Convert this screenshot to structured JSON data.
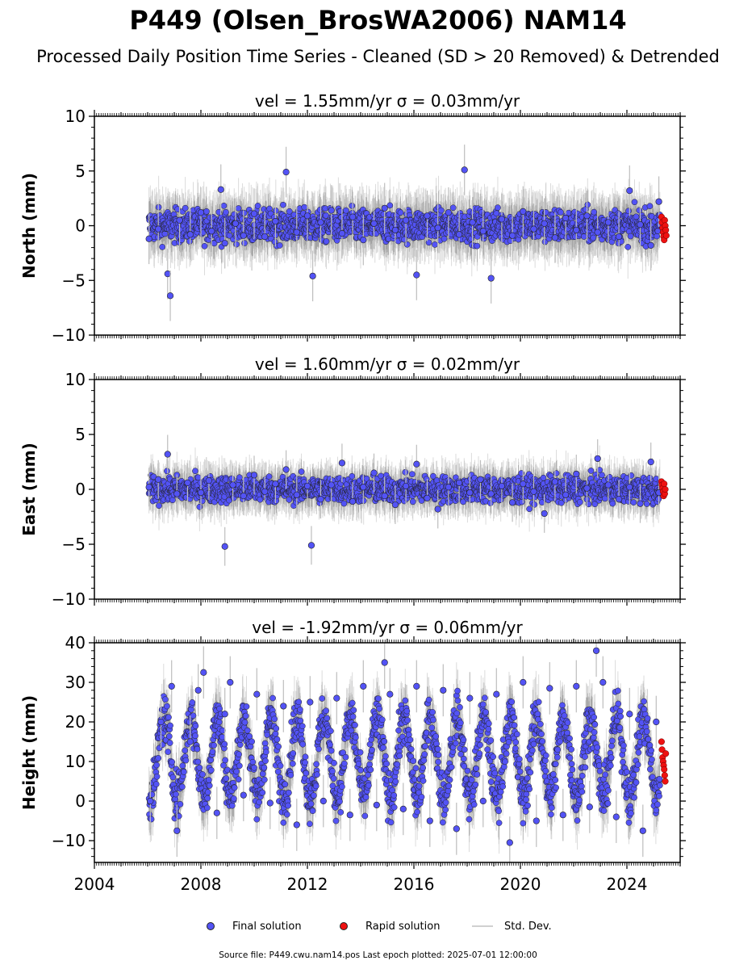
{
  "page": {
    "title": "P449 (Olsen_BrosWA2006) NAM14",
    "subtitle": "Processed Daily Position Time Series - Cleaned (SD > 20 Removed) & Detrended",
    "footer": "Source file: P449.cwu.nam14.pos  Last epoch plotted: 2025-07-01 12:00:00"
  },
  "legend": {
    "final_label": "Final solution",
    "rapid_label": "Rapid solution",
    "std_label": "Std. Dev."
  },
  "colors": {
    "final": "#5353f5",
    "rapid": "#ee1111",
    "std_dev": "#bdbdbd",
    "marker_edge": "#222222"
  },
  "chart_data": [
    {
      "type": "scatter",
      "title": "vel = 1.55mm/yr   σ = 0.03mm/yr",
      "ylabel": "North (mm)",
      "xlim": [
        2004,
        2026
      ],
      "ylim": [
        -10,
        10
      ],
      "yticks": [
        10,
        5,
        0,
        -5,
        -10
      ],
      "ytick_labels": [
        "10",
        "5",
        "0",
        "−5",
        "−10"
      ],
      "series": [
        {
          "name": "Final solution",
          "x": [
            2006.05,
            2006.4,
            2006.75,
            2006.85,
            2007.2,
            2007.6,
            2008.0,
            2008.4,
            2008.75,
            2008.9,
            2009.3,
            2009.6,
            2010.0,
            2010.4,
            2010.8,
            2011.2,
            2011.6,
            2012.0,
            2012.2,
            2012.5,
            2012.9,
            2013.3,
            2013.7,
            2014.1,
            2014.5,
            2014.9,
            2015.3,
            2015.7,
            2016.1,
            2016.5,
            2016.9,
            2017.3,
            2017.7,
            2017.9,
            2018.2,
            2018.6,
            2018.9,
            2019.3,
            2019.7,
            2020.1,
            2020.5,
            2020.9,
            2021.3,
            2021.7,
            2022.1,
            2022.5,
            2022.9,
            2023.3,
            2023.7,
            2024.1,
            2024.5,
            2024.9,
            2025.2
          ],
          "y": [
            -1.2,
            -0.3,
            -4.4,
            -6.4,
            0.5,
            -0.8,
            1.2,
            -0.5,
            3.3,
            -1.6,
            0.2,
            -0.9,
            1.1,
            -1.0,
            0.4,
            4.9,
            -0.6,
            0.9,
            -4.6,
            0.3,
            1.4,
            -0.7,
            0.8,
            -1.3,
            0.2,
            1.6,
            -0.4,
            0.5,
            -4.5,
            0.9,
            -0.2,
            1.2,
            -0.8,
            5.1,
            0.3,
            -0.5,
            -4.8,
            0.6,
            -0.9,
            1.3,
            -0.3,
            0.2,
            -1.1,
            0.7,
            -0.4,
            0.9,
            -0.6,
            0.3,
            -1.0,
            3.2,
            0.1,
            -1.8,
            2.2
          ],
          "std_dev_mm": 2.1
        },
        {
          "name": "Rapid solution",
          "x": [
            2025.3,
            2025.32,
            2025.34,
            2025.36,
            2025.38,
            2025.4,
            2025.42,
            2025.44,
            2025.46,
            2025.48
          ],
          "y": [
            0.8,
            0.3,
            -0.2,
            -0.6,
            -1.0,
            -1.3,
            0.5,
            0.0,
            -0.4,
            -0.9
          ]
        }
      ]
    },
    {
      "type": "scatter",
      "title": "vel = 1.60mm/yr   σ = 0.02mm/yr",
      "ylabel": "East (mm)",
      "xlim": [
        2004,
        2026
      ],
      "ylim": [
        -10,
        10
      ],
      "yticks": [
        10,
        5,
        0,
        -5,
        -10
      ],
      "ytick_labels": [
        "10",
        "5",
        "0",
        "−5",
        "−10"
      ],
      "series": [
        {
          "name": "Final solution",
          "x": [
            2006.05,
            2006.4,
            2006.75,
            2007.1,
            2007.5,
            2008.0,
            2008.3,
            2008.9,
            2009.2,
            2009.6,
            2010.0,
            2010.4,
            2010.8,
            2011.2,
            2011.6,
            2012.0,
            2012.15,
            2012.5,
            2012.9,
            2013.3,
            2013.7,
            2014.1,
            2014.5,
            2014.9,
            2015.3,
            2015.7,
            2016.1,
            2016.5,
            2016.9,
            2017.3,
            2017.7,
            2018.1,
            2018.5,
            2018.9,
            2019.3,
            2019.7,
            2020.1,
            2020.5,
            2020.9,
            2021.3,
            2021.7,
            2022.1,
            2022.5,
            2022.9,
            2023.3,
            2023.7,
            2024.1,
            2024.5,
            2024.9,
            2025.2
          ],
          "y": [
            0.2,
            0.9,
            3.2,
            -0.4,
            0.6,
            -0.3,
            0.8,
            -5.2,
            0.4,
            -0.6,
            1.3,
            -0.2,
            0.5,
            1.8,
            -0.5,
            0.3,
            -5.1,
            -0.9,
            0.4,
            2.4,
            -1.1,
            0.2,
            1.5,
            -0.6,
            -1.4,
            0.3,
            2.3,
            -0.8,
            -1.8,
            0.2,
            0.6,
            -0.3,
            0.9,
            -0.4,
            0.3,
            -1.2,
            0.5,
            -0.2,
            -2.2,
            0.7,
            -0.5,
            1.4,
            0.1,
            2.8,
            0.4,
            -0.9,
            0.2,
            -1.3,
            2.5,
            -0.3
          ],
          "std_dev_mm": 1.6
        },
        {
          "name": "Rapid solution",
          "x": [
            2025.3,
            2025.32,
            2025.34,
            2025.36,
            2025.38,
            2025.4,
            2025.42,
            2025.44
          ],
          "y": [
            0.7,
            0.4,
            0.1,
            -0.2,
            -0.6,
            0.5,
            -0.4,
            0.0
          ]
        }
      ]
    },
    {
      "type": "scatter",
      "title": "vel = -1.92mm/yr   σ = 0.06mm/yr",
      "ylabel": "Height (mm)",
      "xlim": [
        2004,
        2026
      ],
      "ylim": [
        -15.5,
        40
      ],
      "yticks": [
        40,
        30,
        20,
        10,
        0,
        -10
      ],
      "ytick_labels": [
        "40",
        "30",
        "20",
        "10",
        "0",
        "−10"
      ],
      "xticks": [
        2004,
        2008,
        2012,
        2016,
        2020,
        2024
      ],
      "xtick_labels": [
        "2004",
        "2008",
        "2012",
        "2016",
        "2020",
        "2024"
      ],
      "seasonal_amplitude_mm": 10,
      "seasonal_mean_mm": 11,
      "series": [
        {
          "name": "Final solution",
          "x": [
            2006.1,
            2006.5,
            2006.9,
            2007.1,
            2007.6,
            2007.9,
            2008.1,
            2008.6,
            2008.9,
            2009.1,
            2009.6,
            2010.1,
            2010.6,
            2011.1,
            2011.6,
            2012.1,
            2012.6,
            2013.1,
            2013.6,
            2014.1,
            2014.6,
            2014.9,
            2015.1,
            2015.6,
            2016.1,
            2016.6,
            2017.1,
            2017.6,
            2018.1,
            2018.6,
            2019.1,
            2019.6,
            2020.1,
            2020.6,
            2021.1,
            2021.6,
            2022.1,
            2022.6,
            2022.85,
            2023.1,
            2023.6,
            2024.1,
            2024.6,
            2025.1
          ],
          "y": [
            0.0,
            20.0,
            29.0,
            -7.5,
            15.0,
            28.0,
            32.5,
            -3.0,
            22.0,
            30.0,
            1.5,
            27.0,
            -0.5,
            24.0,
            -6.0,
            25.0,
            0.0,
            26.0,
            -3.5,
            29.0,
            -1.0,
            35.0,
            27.0,
            -2.0,
            29.0,
            -5.0,
            28.0,
            -7.0,
            26.0,
            0.0,
            27.0,
            -10.5,
            30.0,
            -5.0,
            28.5,
            -3.5,
            29.0,
            -1.5,
            38.0,
            30.0,
            -4.0,
            22.0,
            -7.5,
            20.0
          ],
          "std_dev_mm": 6.0
        },
        {
          "name": "Rapid solution",
          "x": [
            2025.3,
            2025.32,
            2025.34,
            2025.36,
            2025.38,
            2025.4,
            2025.42,
            2025.44,
            2025.46
          ],
          "y": [
            15.0,
            13.0,
            11.0,
            10.0,
            9.0,
            8.0,
            6.5,
            5.0,
            12.0
          ]
        }
      ]
    }
  ]
}
